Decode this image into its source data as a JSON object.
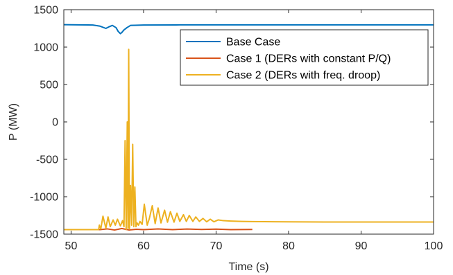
{
  "chart_data": {
    "type": "line",
    "title": "",
    "xlabel": "Time (s)",
    "ylabel": "P (MW)",
    "xlim": [
      49,
      100
    ],
    "ylim": [
      -1500,
      1500
    ],
    "grid": false,
    "legend_position": "top-right",
    "x_ticks": [
      "50",
      "60",
      "70",
      "80",
      "90",
      "100"
    ],
    "y_ticks": [
      "1500",
      "1000",
      "500",
      "0",
      "-500",
      "-1000",
      "-1500"
    ],
    "series": [
      {
        "name": "Base Case",
        "color": "#0072BD",
        "x": [
          49,
          51,
          53,
          54,
          54.8,
          55.2,
          55.7,
          56.2,
          56.5,
          56.8,
          57.0,
          57.3,
          57.7,
          58.2,
          58.8,
          60,
          65,
          70,
          80,
          90,
          100
        ],
        "y": [
          1300,
          1298,
          1295,
          1280,
          1250,
          1270,
          1290,
          1260,
          1210,
          1180,
          1195,
          1230,
          1260,
          1290,
          1292,
          1295,
          1297,
          1298,
          1298,
          1298,
          1298
        ]
      },
      {
        "name": "Case 1 (DERs with constant P/Q)",
        "color": "#D95319",
        "x": [
          49,
          54,
          55,
          56,
          57,
          58,
          59,
          60,
          62,
          64,
          66,
          68,
          70,
          72,
          75
        ],
        "y": [
          -1440,
          -1440,
          -1430,
          -1445,
          -1425,
          -1445,
          -1435,
          -1440,
          -1430,
          -1440,
          -1432,
          -1438,
          -1433,
          -1440,
          -1438
        ]
      },
      {
        "name": "Case 2 (DERs with freq. droop)",
        "color": "#EDB120",
        "x": [
          49,
          53.8,
          53.9,
          54.1,
          54.4,
          54.8,
          55.1,
          55.4,
          55.8,
          56.1,
          56.4,
          56.8,
          57.1,
          57.3,
          57.45,
          57.6,
          57.75,
          57.85,
          57.95,
          58.05,
          58.2,
          58.35,
          58.5,
          58.65,
          58.8,
          58.95,
          59.1,
          59.3,
          59.5,
          59.8,
          60.1,
          60.5,
          60.8,
          61.2,
          61.6,
          62.0,
          62.4,
          62.9,
          63.3,
          63.7,
          64.2,
          64.6,
          65.0,
          65.5,
          65.9,
          66.3,
          66.8,
          67.2,
          67.7,
          68.2,
          68.7,
          69.2,
          69.7,
          70.3,
          71.0,
          72.0,
          73.5,
          75,
          78,
          80,
          85,
          90,
          95,
          100
        ],
        "y": [
          -1440,
          -1440,
          -1380,
          -1430,
          -1260,
          -1420,
          -1270,
          -1400,
          -1310,
          -1380,
          -1300,
          -1390,
          -1320,
          -1400,
          -250,
          -1440,
          0,
          -1420,
          970,
          -1430,
          -850,
          -1380,
          -300,
          -1400,
          -870,
          -1400,
          -1350,
          -1380,
          -1330,
          -1370,
          -1100,
          -1380,
          -1290,
          -1120,
          -1360,
          -1150,
          -1350,
          -1180,
          -1340,
          -1200,
          -1340,
          -1220,
          -1330,
          -1240,
          -1330,
          -1250,
          -1330,
          -1270,
          -1330,
          -1290,
          -1335,
          -1300,
          -1335,
          -1310,
          -1320,
          -1325,
          -1330,
          -1332,
          -1335,
          -1336,
          -1338,
          -1338,
          -1338,
          -1338
        ]
      }
    ]
  }
}
